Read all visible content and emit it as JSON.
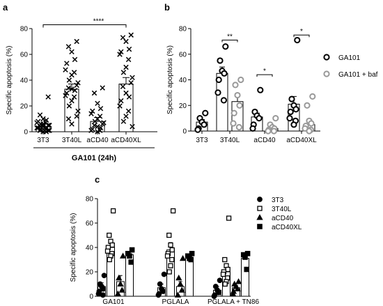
{
  "chart_data": [
    {
      "panel": "a",
      "type": "bar",
      "categories": [
        "3T3",
        "3T40L",
        "aCD40",
        "aCD40XL"
      ],
      "ylabel": "Specific apoptosis (%)",
      "ylim": [
        0,
        80
      ],
      "yticks": [
        0,
        20,
        40,
        60,
        80
      ],
      "group_label": "GA101 (24h)",
      "marker": "x",
      "legend": "none",
      "series": [
        {
          "values": [
            4,
            33,
            8,
            37
          ],
          "errors": [
            2,
            4,
            3,
            5
          ],
          "points": [
            [
              27,
              13,
              10,
              9,
              8,
              7,
              7,
              6,
              6,
              5,
              5,
              4,
              4,
              3,
              3,
              3,
              2,
              2,
              2,
              1,
              1,
              1,
              0,
              0
            ],
            [
              70,
              66,
              62,
              56,
              53,
              48,
              46,
              44,
              40,
              38,
              36,
              34,
              33,
              32,
              30,
              28,
              27,
              24,
              20,
              16,
              12,
              10,
              6
            ],
            [
              34,
              30,
              22,
              18,
              16,
              14,
              12,
              10,
              8,
              7,
              6,
              5,
              4,
              3,
              2,
              1,
              1,
              0
            ],
            [
              75,
              73,
              70,
              64,
              62,
              60,
              56,
              50,
              46,
              42,
              38,
              35,
              30,
              27,
              24,
              20,
              16,
              12,
              8,
              4
            ]
          ]
        }
      ],
      "annotations": [
        {
          "from": 0,
          "to": 3,
          "y": 83,
          "label": "****"
        }
      ]
    },
    {
      "panel": "b",
      "type": "bar",
      "categories": [
        "3T3",
        "3T40L",
        "aCD40",
        "aCD40XL"
      ],
      "ylabel": "Specific apoptosis (%)",
      "ylim": [
        0,
        80
      ],
      "yticks": [
        0,
        20,
        40,
        60,
        80
      ],
      "legend": "right",
      "series": [
        {
          "name": "GA101",
          "color": "#000000",
          "marker": "circle-open",
          "values": [
            7,
            45,
            11,
            21
          ],
          "errors": [
            2,
            5,
            3,
            6
          ],
          "points": [
            [
              14,
              10,
              7,
              5,
              2,
              1
            ],
            [
              66,
              55,
              47,
              45,
              40,
              30,
              24
            ],
            [
              32,
              15,
              12,
              10,
              5,
              2
            ],
            [
              71,
              25,
              20,
              17,
              15,
              10,
              8,
              5
            ]
          ]
        },
        {
          "name": "GA101 + baf",
          "color": "#999999",
          "marker": "circle-open",
          "values": [
            null,
            23,
            2,
            5
          ],
          "errors": [
            null,
            6,
            1,
            2
          ],
          "points": [
            [],
            [
              40,
              36,
              28,
              20,
              14,
              6,
              3
            ],
            [
              10,
              5,
              3,
              2,
              1,
              0,
              0
            ],
            [
              27,
              20,
              8,
              6,
              4,
              2,
              1,
              0
            ]
          ]
        }
      ],
      "annotations": [
        {
          "category": 1,
          "y": 71,
          "label": "**"
        },
        {
          "category": 2,
          "y": 44,
          "label": "*"
        },
        {
          "category": 3,
          "y": 75,
          "label": "*"
        }
      ]
    },
    {
      "panel": "c",
      "type": "bar",
      "categories": [
        "GA101",
        "PGLALA",
        "PGLALA + TN86"
      ],
      "ylabel": "Specific apoptosis (%)",
      "ylim": [
        0,
        80
      ],
      "yticks": [
        0,
        20,
        40,
        60,
        80
      ],
      "legend": "right",
      "series": [
        {
          "name": "3T3",
          "marker": "circle-filled",
          "values": [
            8,
            7,
            5
          ],
          "errors": [
            3,
            3,
            3
          ],
          "points": [
            [
              17,
              10,
              8,
              6,
              4,
              2,
              1
            ],
            [
              18,
              10,
              6,
              4,
              2,
              1
            ],
            [
              13,
              8,
              5,
              3,
              1,
              0
            ]
          ]
        },
        {
          "name": "3T40L",
          "marker": "square-open",
          "values": [
            40,
            38,
            20
          ],
          "errors": [
            5,
            6,
            4
          ],
          "points": [
            [
              70,
              50,
              45,
              42,
              40,
              37,
              35,
              33,
              30
            ],
            [
              70,
              50,
              42,
              38,
              35,
              33,
              30,
              25,
              20
            ],
            [
              64,
              30,
              25,
              22,
              20,
              18,
              15,
              12,
              10
            ]
          ]
        },
        {
          "name": "aCD40",
          "marker": "triangle-filled",
          "values": [
            12,
            8,
            7
          ],
          "errors": [
            5,
            4,
            2
          ],
          "points": [
            [
              33,
              15,
              10,
              5,
              2
            ],
            [
              31,
              15,
              10,
              5,
              1
            ],
            [
              12,
              10,
              8,
              6,
              4,
              2
            ]
          ]
        },
        {
          "name": "aCD40XL",
          "marker": "square-filled",
          "values": [
            34,
            32,
            31
          ],
          "errors": [
            2,
            1,
            3
          ],
          "points": [
            [
              38,
              35,
              33,
              28
            ],
            [
              35,
              33,
              31,
              30
            ],
            [
              35,
              34,
              32,
              22
            ]
          ]
        }
      ]
    }
  ],
  "panel_labels": {
    "a": "a",
    "b": "b",
    "c": "c"
  },
  "colors": {
    "ink": "#000000",
    "baf": "#999999"
  }
}
